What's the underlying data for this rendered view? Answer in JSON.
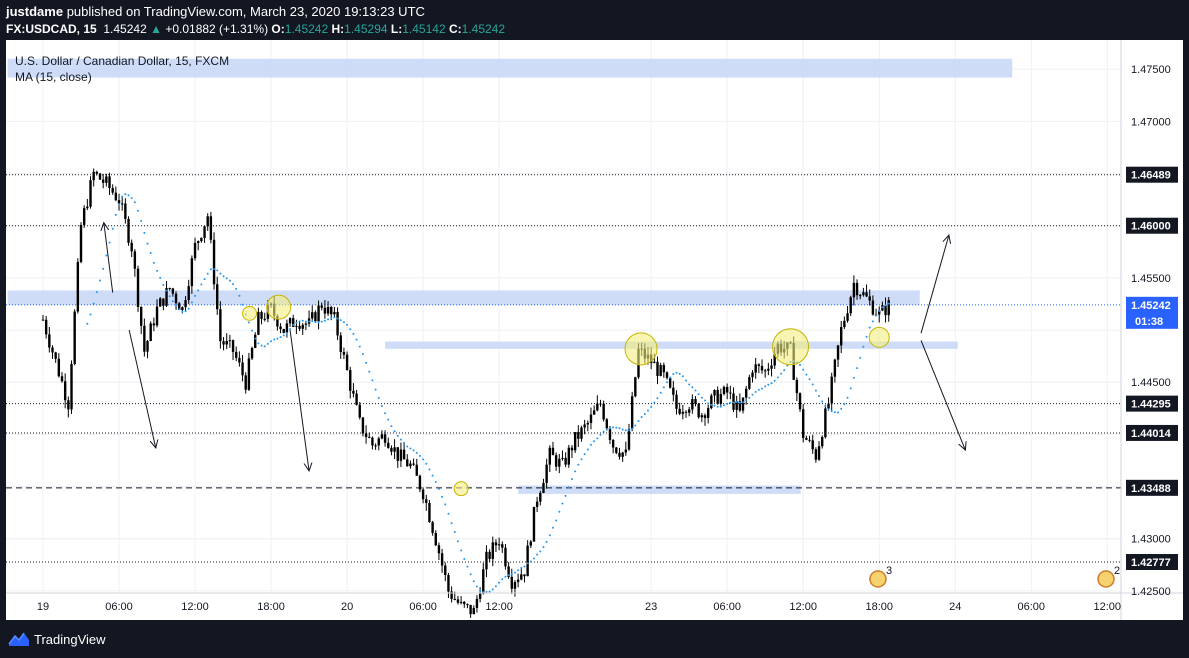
{
  "header": {
    "author": "justdame",
    "published_text": "published on TradingView.com, March 23, 2020 19:13:23 UTC",
    "symbol": "FX:USDCAD, 15",
    "price": "1.45242",
    "change_arrow": "▲",
    "change": "+0.01882 (+1.31%)",
    "open_label": "O:",
    "open": "1.45242",
    "high_label": "H:",
    "high": "1.45294",
    "low_label": "L:",
    "low": "1.45142",
    "close_label": "C:",
    "close": "1.45242"
  },
  "chart_legend": {
    "series_title": "U.S. Dollar / Canadian Dollar, 15, FXCM",
    "indicator": "MA (15, close)"
  },
  "footer": {
    "brand": "TradingView",
    "logo_icon": "tradingview-logo-icon"
  },
  "colors": {
    "background": "#131722",
    "plot_bg": "#ffffff",
    "candle": "#000000",
    "ma": "#2196f3",
    "zone": "#c5d6f7",
    "circle": "#f2ee7d",
    "label_bg": "#131722",
    "price_label_bg": "#2962ff"
  },
  "chart_data": {
    "type": "candlestick",
    "title": "U.S. Dollar / Canadian Dollar, 15, FXCM",
    "indicator": "MA (15, close)",
    "ylim": [
      1.4248,
      1.4778
    ],
    "y_ticks": [
      "1.47500",
      "1.47000",
      "1.45500",
      "1.44500",
      "1.43000",
      "1.42500"
    ],
    "x_ticks": [
      {
        "label": "19",
        "t": 0
      },
      {
        "label": "06:00",
        "t": 6
      },
      {
        "label": "12:00",
        "t": 12
      },
      {
        "label": "18:00",
        "t": 18
      },
      {
        "label": "20",
        "t": 24
      },
      {
        "label": "06:00",
        "t": 30
      },
      {
        "label": "12:00",
        "t": 36
      },
      {
        "label": "23",
        "t": 48
      },
      {
        "label": "06:00",
        "t": 54
      },
      {
        "label": "12:00",
        "t": 60
      },
      {
        "label": "18:00",
        "t": 66
      },
      {
        "label": "24",
        "t": 72
      },
      {
        "label": "06:00",
        "t": 78
      },
      {
        "label": "12:00",
        "t": 84
      }
    ],
    "x_unit": "hours since Mar 19 00:00 (weekend compressed)",
    "price_levels": [
      {
        "value": 1.46489,
        "label": "1.46489",
        "style": "dotted"
      },
      {
        "value": 1.46,
        "label": "1.46000",
        "style": "dotted"
      },
      {
        "value": 1.44295,
        "label": "1.44295",
        "style": "dotted"
      },
      {
        "value": 1.44014,
        "label": "1.44014",
        "style": "dotted"
      },
      {
        "value": 1.43488,
        "label": "1.43488",
        "style": "dashed"
      },
      {
        "value": 1.42777,
        "label": "1.42777",
        "style": "dotted"
      }
    ],
    "current_price": {
      "value": 1.45242,
      "label": "1.45242",
      "countdown": "01:38"
    },
    "zones": [
      {
        "t0": -2.8,
        "t1": 76.5,
        "y0": 1.4742,
        "y1": 1.476
      },
      {
        "t0": -2.8,
        "t1": 69.2,
        "y0": 1.4524,
        "y1": 1.4538
      },
      {
        "t0": 27,
        "t1": 72.2,
        "y0": 1.4482,
        "y1": 1.4489
      },
      {
        "t0": 37.5,
        "t1": 59.8,
        "y0": 1.4343,
        "y1": 1.4351
      }
    ],
    "circles": [
      {
        "t": 16.3,
        "y": 1.4516,
        "r": 7
      },
      {
        "t": 18.6,
        "y": 1.4522,
        "r": 12
      },
      {
        "t": 33.0,
        "y": 1.4348,
        "r": 7
      },
      {
        "t": 47.2,
        "y": 1.4482,
        "r": 16
      },
      {
        "t": 59.0,
        "y": 1.4484,
        "r": 18
      },
      {
        "t": 66.0,
        "y": 1.4493,
        "r": 10
      }
    ],
    "arrows": [
      {
        "t0": 5.5,
        "y0": 1.4536,
        "t1": 4.8,
        "y1": 1.4603
      },
      {
        "t0": 6.8,
        "y0": 1.45,
        "t1": 8.9,
        "y1": 1.4387
      },
      {
        "t0": 19.5,
        "y0": 1.45,
        "t1": 21.0,
        "y1": 1.4365
      },
      {
        "t0": 69.3,
        "y0": 1.4497,
        "t1": 71.5,
        "y1": 1.4591
      },
      {
        "t0": 69.3,
        "y0": 1.449,
        "t1": 72.8,
        "y1": 1.4385
      }
    ],
    "event_markers": [
      {
        "t": 65.9,
        "count": "3"
      },
      {
        "t": 83.9,
        "count": "2"
      }
    ],
    "anchors": [
      [
        0,
        1.451
      ],
      [
        1,
        1.447
      ],
      [
        2,
        1.443
      ],
      [
        3,
        1.46
      ],
      [
        4,
        1.465
      ],
      [
        5,
        1.464
      ],
      [
        6,
        1.4625
      ],
      [
        7,
        1.458
      ],
      [
        8,
        1.448
      ],
      [
        9,
        1.452
      ],
      [
        10,
        1.454
      ],
      [
        11,
        1.452
      ],
      [
        12,
        1.458
      ],
      [
        13,
        1.461
      ],
      [
        14,
        1.449
      ],
      [
        15,
        1.448
      ],
      [
        16,
        1.445
      ],
      [
        17,
        1.451
      ],
      [
        18,
        1.452
      ],
      [
        19,
        1.45
      ],
      [
        20,
        1.451
      ],
      [
        21,
        1.4505
      ],
      [
        22,
        1.4525
      ],
      [
        23,
        1.451
      ],
      [
        24,
        1.446
      ],
      [
        25,
        1.441
      ],
      [
        26,
        1.439
      ],
      [
        27,
        1.44
      ],
      [
        28,
        1.438
      ],
      [
        29,
        1.437
      ],
      [
        30,
        1.4345
      ],
      [
        31,
        1.43
      ],
      [
        32,
        1.425
      ],
      [
        33,
        1.4235
      ],
      [
        34,
        1.423
      ],
      [
        35,
        1.428
      ],
      [
        36,
        1.43
      ],
      [
        37,
        1.426
      ],
      [
        38,
        1.427
      ],
      [
        39,
        1.434
      ],
      [
        40,
        1.438
      ],
      [
        41,
        1.437
      ],
      [
        42,
        1.4395
      ],
      [
        43,
        1.441
      ],
      [
        44,
        1.443
      ],
      [
        45,
        1.439
      ],
      [
        46,
        1.438
      ],
      [
        47,
        1.448
      ],
      [
        48,
        1.447
      ],
      [
        49,
        1.4455
      ],
      [
        50,
        1.4425
      ],
      [
        51,
        1.443
      ],
      [
        52,
        1.442
      ],
      [
        53,
        1.4435
      ],
      [
        54,
        1.444
      ],
      [
        55,
        1.442
      ],
      [
        56,
        1.4465
      ],
      [
        57,
        1.446
      ],
      [
        58,
        1.4485
      ],
      [
        59,
        1.448
      ],
      [
        60,
        1.44
      ],
      [
        61,
        1.438
      ],
      [
        62,
        1.443
      ],
      [
        63,
        1.45
      ],
      [
        64,
        1.4545
      ],
      [
        65,
        1.453
      ],
      [
        66,
        1.4515
      ],
      [
        66.8,
        1.4524
      ]
    ]
  }
}
